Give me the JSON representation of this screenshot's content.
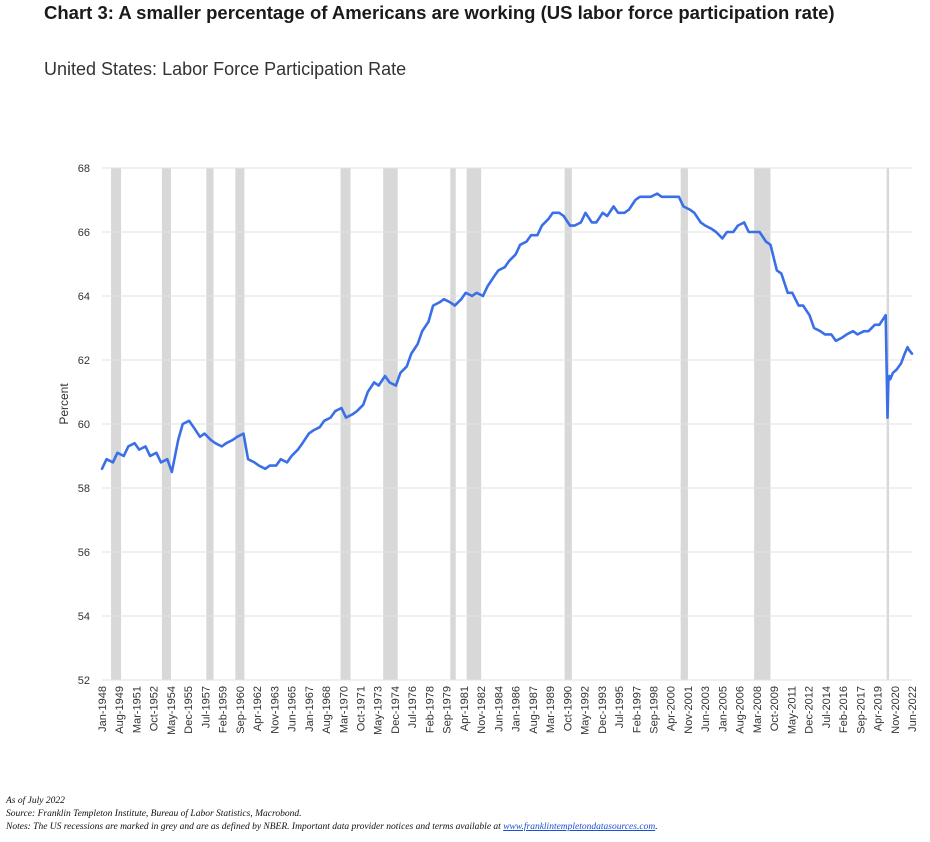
{
  "headline": "Chart 3: A smaller percentage of Americans are working (US labor force participation rate)",
  "colors": {
    "line": "#3a6fe8",
    "recession": "#d8d8d8",
    "grid": "#e2e2e2"
  },
  "chart_data": {
    "type": "line",
    "title": "United States: Labor Force Participation Rate",
    "ylabel": "Percent",
    "xlabel": "",
    "ylim": [
      52,
      68
    ],
    "yticks": [
      52,
      54,
      56,
      58,
      60,
      62,
      64,
      66,
      68
    ],
    "xlim": [
      "1948-01",
      "2022-06"
    ],
    "grid": "horizontal",
    "xtick_labels": [
      "Jan-1948",
      "Aug-1949",
      "Mar-1951",
      "Oct-1952",
      "May-1954",
      "Dec-1955",
      "Jul-1957",
      "Feb-1959",
      "Sep-1960",
      "Apr-1962",
      "Nov-1963",
      "Jun-1965",
      "Jan-1967",
      "Aug-1968",
      "Mar-1970",
      "Oct-1971",
      "May-1973",
      "Dec-1974",
      "Jul-1976",
      "Feb-1978",
      "Sep-1979",
      "Apr-1981",
      "Nov-1982",
      "Jun-1984",
      "Jan-1986",
      "Aug-1987",
      "Mar-1989",
      "Oct-1990",
      "May-1992",
      "Dec-1993",
      "Jul-1995",
      "Feb-1997",
      "Sep-1998",
      "Apr-2000",
      "Nov-2001",
      "Jun-2003",
      "Jan-2005",
      "Aug-2006",
      "Mar-2008",
      "Oct-2009",
      "May-2011",
      "Dec-2012",
      "Jul-2014",
      "Feb-2016",
      "Sep-2017",
      "Apr-2019",
      "Nov-2020",
      "Jun-2022"
    ],
    "recessions": [
      [
        "1948-11",
        "1949-10"
      ],
      [
        "1953-07",
        "1954-05"
      ],
      [
        "1957-08",
        "1958-04"
      ],
      [
        "1960-04",
        "1961-02"
      ],
      [
        "1969-12",
        "1970-11"
      ],
      [
        "1973-11",
        "1975-03"
      ],
      [
        "1980-01",
        "1980-07"
      ],
      [
        "1981-07",
        "1982-11"
      ],
      [
        "1990-07",
        "1991-03"
      ],
      [
        "2001-03",
        "2001-11"
      ],
      [
        "2007-12",
        "2009-06"
      ],
      [
        "2020-02",
        "2020-04"
      ]
    ],
    "series": [
      {
        "x": [
          "1948-01",
          "1948-06",
          "1949-01",
          "1949-06",
          "1950-01",
          "1950-06",
          "1951-01",
          "1951-06",
          "1952-01",
          "1952-06",
          "1953-01",
          "1953-06",
          "1954-01",
          "1954-06",
          "1955-01",
          "1955-06",
          "1956-01",
          "1956-06",
          "1957-01",
          "1957-06",
          "1958-01",
          "1958-06",
          "1959-01",
          "1959-06",
          "1960-01",
          "1960-06",
          "1961-01",
          "1961-06",
          "1962-01",
          "1962-06",
          "1963-01",
          "1963-06",
          "1964-01",
          "1964-06",
          "1965-01",
          "1965-06",
          "1966-01",
          "1966-06",
          "1967-01",
          "1967-06",
          "1968-01",
          "1968-06",
          "1969-01",
          "1969-06",
          "1970-01",
          "1970-06",
          "1971-01",
          "1971-06",
          "1972-01",
          "1972-06",
          "1973-01",
          "1973-06",
          "1974-01",
          "1974-06",
          "1975-01",
          "1975-06",
          "1976-01",
          "1976-06",
          "1977-01",
          "1977-06",
          "1978-01",
          "1978-06",
          "1979-01",
          "1979-06",
          "1980-01",
          "1980-06",
          "1981-01",
          "1981-06",
          "1982-01",
          "1982-06",
          "1983-01",
          "1983-06",
          "1984-01",
          "1984-06",
          "1985-01",
          "1985-06",
          "1986-01",
          "1986-06",
          "1987-01",
          "1987-06",
          "1988-01",
          "1988-06",
          "1989-01",
          "1989-06",
          "1990-01",
          "1990-06",
          "1991-01",
          "1991-06",
          "1992-01",
          "1992-06",
          "1993-01",
          "1993-06",
          "1994-01",
          "1994-06",
          "1995-01",
          "1995-06",
          "1996-01",
          "1996-06",
          "1997-01",
          "1997-06",
          "1998-01",
          "1998-06",
          "1999-01",
          "1999-06",
          "2000-01",
          "2000-06",
          "2001-01",
          "2001-06",
          "2002-01",
          "2002-06",
          "2003-01",
          "2003-06",
          "2004-01",
          "2004-06",
          "2005-01",
          "2005-06",
          "2006-01",
          "2006-06",
          "2007-01",
          "2007-06",
          "2008-01",
          "2008-06",
          "2009-01",
          "2009-06",
          "2010-01",
          "2010-06",
          "2011-01",
          "2011-06",
          "2012-01",
          "2012-06",
          "2013-01",
          "2013-06",
          "2014-01",
          "2014-06",
          "2015-01",
          "2015-06",
          "2016-01",
          "2016-06",
          "2017-01",
          "2017-06",
          "2018-01",
          "2018-06",
          "2019-01",
          "2019-06",
          "2020-01",
          "2020-03",
          "2020-04",
          "2020-05",
          "2020-06",
          "2020-09",
          "2021-01",
          "2021-06",
          "2021-10",
          "2022-01",
          "2022-03",
          "2022-06"
        ],
        "values": [
          58.6,
          58.9,
          58.8,
          59.1,
          59.0,
          59.3,
          59.4,
          59.2,
          59.3,
          59.0,
          59.1,
          58.8,
          58.9,
          58.5,
          59.5,
          60.0,
          60.1,
          59.9,
          59.6,
          59.7,
          59.5,
          59.4,
          59.3,
          59.4,
          59.5,
          59.6,
          59.7,
          58.9,
          58.8,
          58.7,
          58.6,
          58.7,
          58.7,
          58.9,
          58.8,
          59.0,
          59.2,
          59.4,
          59.7,
          59.8,
          59.9,
          60.1,
          60.2,
          60.4,
          60.5,
          60.2,
          60.3,
          60.4,
          60.6,
          61.0,
          61.3,
          61.2,
          61.5,
          61.3,
          61.2,
          61.6,
          61.8,
          62.2,
          62.5,
          62.9,
          63.2,
          63.7,
          63.8,
          63.9,
          63.8,
          63.7,
          63.9,
          64.1,
          64.0,
          64.1,
          64.0,
          64.3,
          64.6,
          64.8,
          64.9,
          65.1,
          65.3,
          65.6,
          65.7,
          65.9,
          65.9,
          66.2,
          66.4,
          66.6,
          66.6,
          66.5,
          66.2,
          66.2,
          66.3,
          66.6,
          66.3,
          66.3,
          66.6,
          66.5,
          66.8,
          66.6,
          66.6,
          66.7,
          67.0,
          67.1,
          67.1,
          67.1,
          67.2,
          67.1,
          67.1,
          67.1,
          67.1,
          66.8,
          66.7,
          66.6,
          66.3,
          66.2,
          66.1,
          66.0,
          65.8,
          66.0,
          66.0,
          66.2,
          66.3,
          66.0,
          66.0,
          66.0,
          65.7,
          65.6,
          64.8,
          64.7,
          64.1,
          64.1,
          63.7,
          63.7,
          63.4,
          63.0,
          62.9,
          62.8,
          62.8,
          62.6,
          62.7,
          62.8,
          62.9,
          62.8,
          62.9,
          62.9,
          63.1,
          63.1,
          63.4,
          60.2,
          61.4,
          61.5,
          61.4,
          61.6,
          61.7,
          61.9,
          62.2,
          62.4,
          62.3,
          62.2
        ]
      }
    ]
  },
  "footer": {
    "asof": "As of July 2022",
    "source": "Source: Franklin Templeton Institute, Bureau of Labor Statistics, Macrobond.",
    "notes": "Notes: The US recessions are marked in grey and are as defined by NBER. Important data provider notices and terms available at",
    "link": "www.franklintempletondatasources.com",
    "end": "."
  }
}
